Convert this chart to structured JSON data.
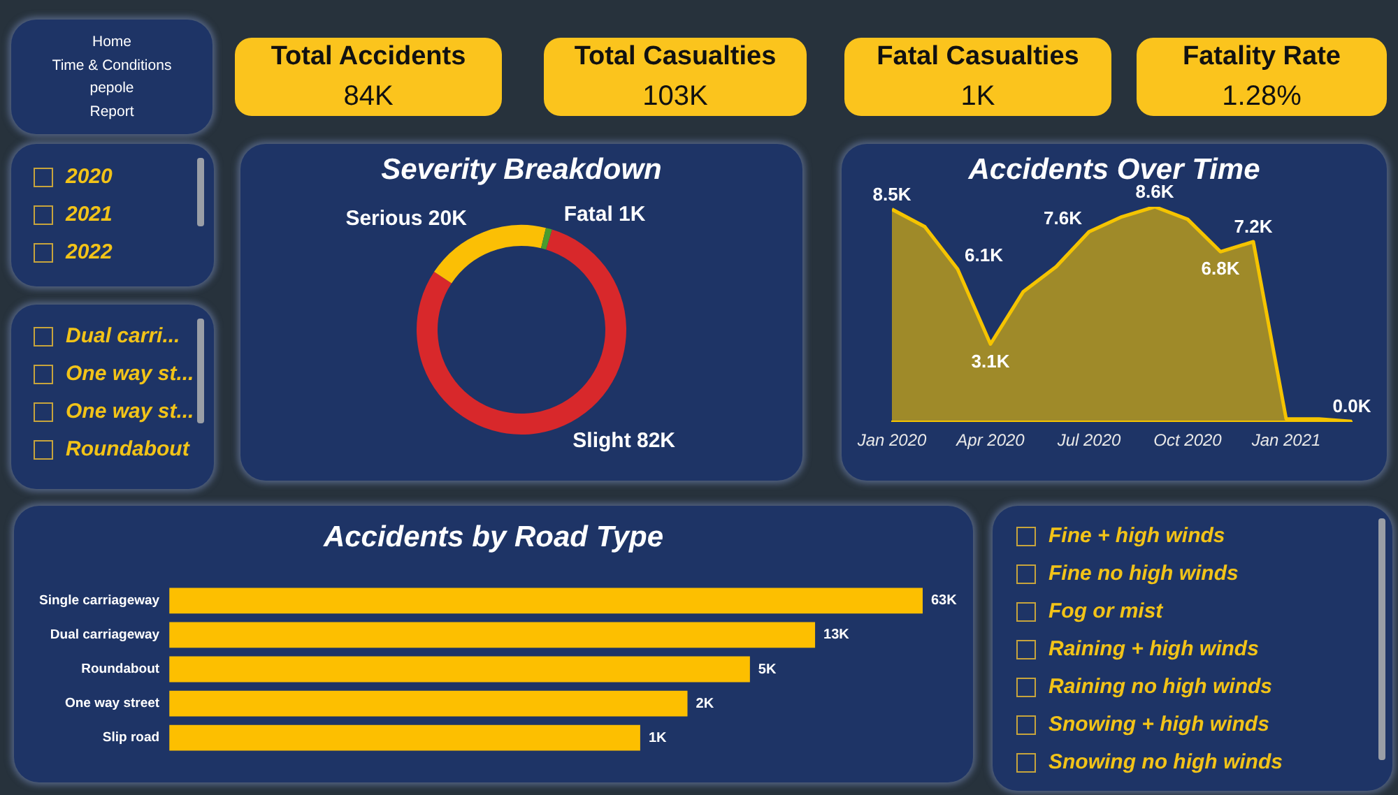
{
  "chart_data": [
    {
      "type": "other",
      "annotations": [
        "Home",
        "Time & Conditions",
        "pepole",
        "Report"
      ]
    },
    {
      "type": "other",
      "title": "Total Accidents",
      "annotations": [
        "84K"
      ]
    },
    {
      "type": "other",
      "title": "Total Casualties",
      "annotations": [
        "103K"
      ]
    },
    {
      "type": "other",
      "title": "Fatal Casualties",
      "annotations": [
        "1K"
      ]
    },
    {
      "type": "other",
      "title": "Fatality Rate",
      "annotations": [
        "1.28%"
      ]
    },
    {
      "type": "other",
      "annotations": [
        "2020",
        "2021",
        "2022"
      ]
    },
    {
      "type": "donut",
      "title": "Severity Breakdown",
      "categories": [
        "Slight",
        "Serious",
        "Fatal"
      ],
      "values": [
        82,
        20,
        1
      ],
      "colors": [
        "#d8282b",
        "#fbbf05",
        "#4a9c2d"
      ],
      "value_labels": [
        "82K",
        "20K",
        "1K"
      ]
    },
    {
      "type": "area",
      "title": "Accidents Over Time",
      "x": [
        "2020-01",
        "2020-02",
        "2020-03",
        "2020-04",
        "2020-05",
        "2020-06",
        "2020-07",
        "2020-08",
        "2020-09",
        "2020-10",
        "2020-11",
        "2020-12",
        "2021-01",
        "2021-02",
        "2021-03"
      ],
      "values": [
        8.5,
        7.8,
        6.1,
        3.1,
        5.2,
        6.2,
        7.6,
        8.2,
        8.6,
        8.1,
        6.8,
        7.2,
        0.1,
        0.1,
        0.0
      ],
      "color": "#f5c400",
      "xlim": [
        "2020-01",
        "2021-03"
      ],
      "xticks": [
        {
          "value": "2020-01",
          "label": "Jan 2020"
        },
        {
          "value": "2020-04",
          "label": "Apr 2020"
        },
        {
          "value": "2020-07",
          "label": "Jul 2020"
        },
        {
          "value": "2020-10",
          "label": "Oct 2020"
        },
        {
          "value": "2021-01",
          "label": "Jan 2021"
        }
      ],
      "tick_labels": "x",
      "value_labels": [
        "8.5K",
        null,
        "6.1K",
        "3.1K",
        null,
        null,
        "7.6K",
        null,
        "8.6K",
        null,
        "6.8K",
        "7.2K",
        null,
        null,
        "0.0K"
      ]
    },
    {
      "type": "other",
      "annotations": [
        "Dual carri...",
        "One way st...",
        "One way st...",
        "Roundabout"
      ]
    },
    {
      "type": "bar",
      "title": "Accidents by Road Type",
      "orientation": "horizontal",
      "categories": [
        "Single carriageway",
        "Dual carriageway",
        "Roundabout",
        "One way street",
        "Slip road"
      ],
      "values": [
        63,
        13,
        5,
        2,
        1
      ],
      "color": "#fdbf00",
      "log": "x",
      "xlim": [
        0.001,
        63
      ],
      "tick_labels": "y",
      "value_labels": [
        "63K",
        "13K",
        "5K",
        "2K",
        "1K"
      ]
    },
    {
      "type": "other",
      "annotations": [
        "Fine + high winds",
        "Fine no high winds",
        "Fog or mist",
        "Raining + high winds",
        "Raining no high winds",
        "Snowing + high winds",
        "Snowing no high winds"
      ]
    }
  ]
}
